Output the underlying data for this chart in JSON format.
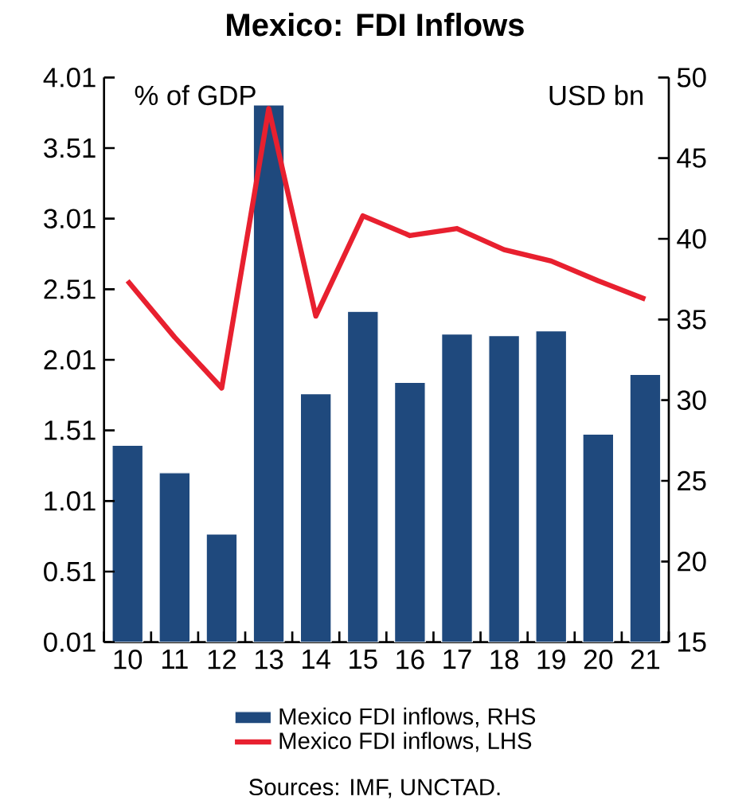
{
  "chart_data": {
    "type": "bar",
    "title": "Mexico: FDI Inflows",
    "categories": [
      "10",
      "11",
      "12",
      "13",
      "14",
      "15",
      "16",
      "17",
      "18",
      "19",
      "20",
      "21"
    ],
    "series": [
      {
        "name": "Mexico FDI inflows, RHS",
        "axis": "y2",
        "color": "#1f497d",
        "values": [
          27.2,
          25.5,
          21.7,
          48.3,
          30.4,
          35.5,
          31.1,
          34.1,
          34.0,
          34.3,
          27.9,
          31.6
        ]
      },
      {
        "name": "Mexico FDI inflows, LHS",
        "type": "line",
        "axis": "y",
        "color": "#e8202f",
        "values": [
          2.57,
          2.17,
          1.81,
          3.79,
          2.32,
          3.03,
          2.89,
          2.94,
          2.79,
          2.71,
          2.57,
          2.44
        ]
      }
    ],
    "ylabel": "% of GDP",
    "y2label": "USD bn",
    "ylim": [
      0.01,
      4.01
    ],
    "yticks": [
      0.01,
      0.51,
      1.01,
      1.51,
      2.01,
      2.51,
      3.01,
      3.51,
      4.01
    ],
    "y2lim": [
      15,
      50
    ],
    "y2ticks": [
      15,
      20,
      25,
      30,
      35,
      40,
      45,
      50
    ],
    "legend": "bottom",
    "annotations": [
      "Sources: IMF, UNCTAD."
    ]
  }
}
